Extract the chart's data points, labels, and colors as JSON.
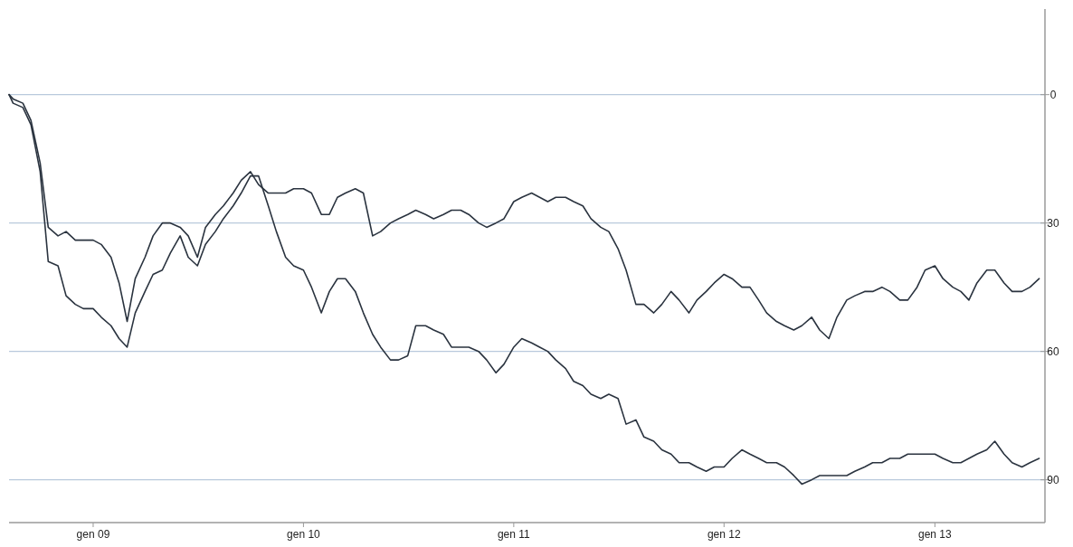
{
  "chart_data": {
    "type": "line",
    "x": [
      "2008-08-08",
      "2008-08-15",
      "2008-09-01",
      "2008-09-15",
      "2008-10-01",
      "2008-10-15",
      "2008-11-01",
      "2008-11-15",
      "2008-12-01",
      "2008-12-15",
      "2009-01-01",
      "2009-01-15",
      "2009-02-01",
      "2009-02-15",
      "2009-03-01",
      "2009-03-15",
      "2009-04-01",
      "2009-04-15",
      "2009-05-01",
      "2009-05-15",
      "2009-06-01",
      "2009-06-15",
      "2009-07-01",
      "2009-07-15",
      "2009-08-01",
      "2009-08-15",
      "2009-09-01",
      "2009-09-15",
      "2009-10-01",
      "2009-10-15",
      "2009-11-01",
      "2009-11-15",
      "2009-12-01",
      "2009-12-15",
      "2010-01-01",
      "2010-01-15",
      "2010-02-01",
      "2010-02-15",
      "2010-03-01",
      "2010-03-15",
      "2010-04-01",
      "2010-04-15",
      "2010-05-01",
      "2010-05-15",
      "2010-06-01",
      "2010-06-15",
      "2010-07-01",
      "2010-07-15",
      "2010-08-01",
      "2010-08-15",
      "2010-09-01",
      "2010-09-15",
      "2010-10-01",
      "2010-10-15",
      "2010-11-01",
      "2010-11-15",
      "2010-12-01",
      "2010-12-15",
      "2011-01-01",
      "2011-01-15",
      "2011-02-01",
      "2011-02-15",
      "2011-03-01",
      "2011-03-15",
      "2011-04-01",
      "2011-04-15",
      "2011-05-01",
      "2011-05-15",
      "2011-06-01",
      "2011-06-15",
      "2011-07-01",
      "2011-07-15",
      "2011-08-01",
      "2011-08-15",
      "2011-09-01",
      "2011-09-15",
      "2011-10-01",
      "2011-10-15",
      "2011-11-01",
      "2011-11-15",
      "2011-12-01",
      "2011-12-15",
      "2012-01-01",
      "2012-01-15",
      "2012-02-01",
      "2012-02-15",
      "2012-03-01",
      "2012-03-15",
      "2012-04-01",
      "2012-04-15",
      "2012-05-01",
      "2012-05-15",
      "2012-06-01",
      "2012-06-15",
      "2012-07-01",
      "2012-07-15",
      "2012-08-01",
      "2012-08-15",
      "2012-09-01",
      "2012-09-15",
      "2012-10-01",
      "2012-10-15",
      "2012-11-01",
      "2012-11-15",
      "2012-12-01",
      "2012-12-15",
      "2013-01-01",
      "2013-01-15",
      "2013-02-01",
      "2013-02-15",
      "2013-03-01",
      "2013-03-15",
      "2013-04-01",
      "2013-04-15",
      "2013-05-01",
      "2013-05-15",
      "2013-06-01",
      "2013-06-15",
      "2013-07-01"
    ],
    "series": [
      {
        "color": "#2a333f",
        "values": [
          0,
          1,
          2,
          6,
          16,
          31,
          33,
          32,
          34,
          34,
          34,
          35,
          38,
          44,
          53,
          43,
          38,
          33,
          30,
          30,
          31,
          33,
          38,
          31,
          28,
          26,
          23,
          20,
          18,
          21,
          23,
          23,
          23,
          22,
          22,
          23,
          28,
          28,
          24,
          23,
          22,
          23,
          33,
          32,
          30,
          29,
          28,
          27,
          28,
          29,
          28,
          27,
          27,
          28,
          30,
          31,
          30,
          29,
          25,
          24,
          23,
          24,
          25,
          24,
          24,
          25,
          26,
          29,
          31,
          32,
          36,
          41,
          49,
          49,
          51,
          49,
          46,
          48,
          51,
          48,
          46,
          44,
          42,
          43,
          45,
          45,
          48,
          51,
          53,
          54,
          55,
          54,
          52,
          55,
          57,
          52,
          48,
          47,
          46,
          46,
          45,
          46,
          48,
          48,
          45,
          41,
          40,
          43,
          45,
          46,
          48,
          44,
          41,
          41,
          44,
          46,
          46,
          45,
          43
        ]
      },
      {
        "color": "#2a333f",
        "values": [
          0,
          2,
          3,
          7,
          18,
          39,
          40,
          47,
          49,
          50,
          50,
          52,
          54,
          57,
          59,
          51,
          46,
          42,
          41,
          37,
          33,
          38,
          40,
          35,
          32,
          29,
          26,
          23,
          19,
          19,
          26,
          32,
          38,
          40,
          41,
          45,
          51,
          46,
          43,
          43,
          46,
          51,
          56,
          59,
          62,
          62,
          61,
          54,
          54,
          55,
          56,
          59,
          59,
          59,
          60,
          62,
          65,
          63,
          59,
          57,
          58,
          59,
          60,
          62,
          64,
          67,
          68,
          70,
          71,
          70,
          71,
          77,
          76,
          80,
          81,
          83,
          84,
          86,
          86,
          87,
          88,
          87,
          87,
          85,
          83,
          84,
          85,
          86,
          86,
          87,
          89,
          91,
          90,
          89,
          89,
          89,
          89,
          88,
          87,
          86,
          86,
          85,
          85,
          84,
          84,
          84,
          84,
          85,
          86,
          86,
          85,
          84,
          83,
          81,
          84,
          86,
          87,
          86,
          85
        ]
      }
    ],
    "xlim": [
      "2008-08-08",
      "2013-07-11"
    ],
    "xticks": [
      {
        "value": "2009-01-01",
        "label": "gen 09"
      },
      {
        "value": "2010-01-01",
        "label": "gen 10"
      },
      {
        "value": "2011-01-01",
        "label": "gen 11"
      },
      {
        "value": "2012-01-01",
        "label": "gen 12"
      },
      {
        "value": "2013-01-01",
        "label": "gen 13"
      }
    ],
    "ylim": [
      100,
      -20
    ],
    "yticks": [
      0,
      30,
      60,
      90
    ],
    "grid": "y",
    "line_style": "solid"
  }
}
